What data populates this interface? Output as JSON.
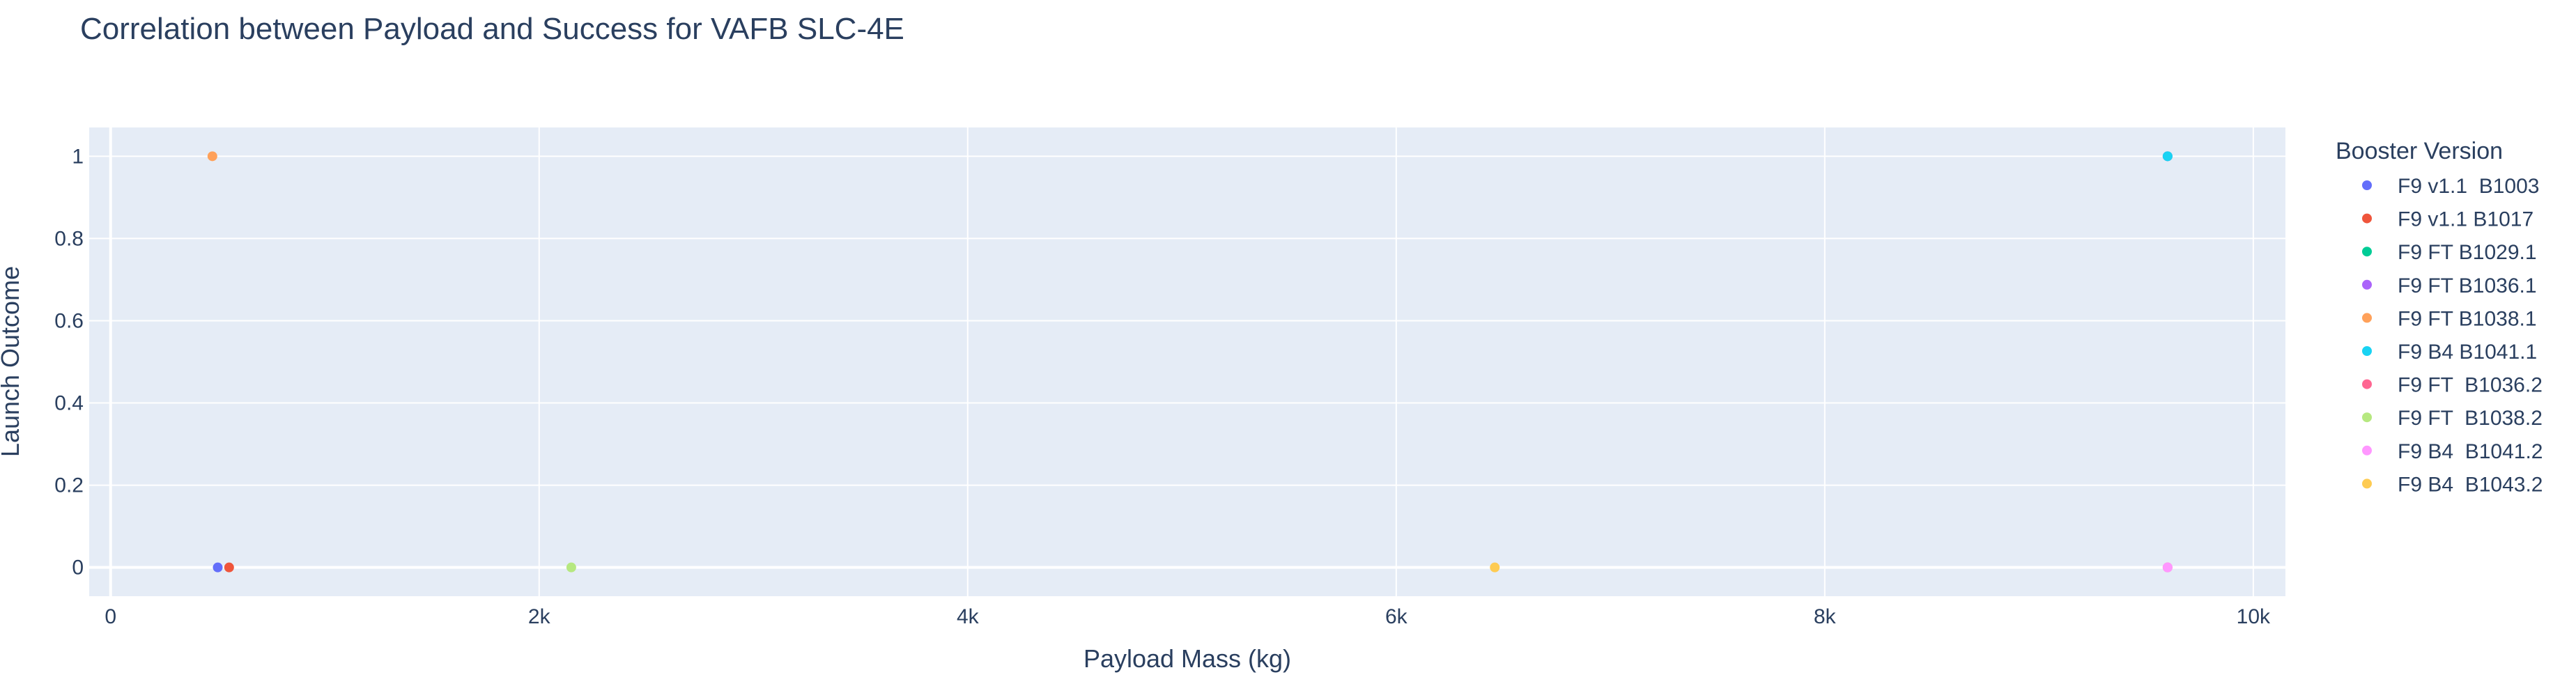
{
  "chart_data": {
    "type": "scatter",
    "title": "Correlation between Payload and Success for VAFB SLC-4E",
    "xlabel": "Payload Mass (kg)",
    "ylabel": "Launch Outcome",
    "xlim": [
      -100,
      10150
    ],
    "ylim": [
      -0.07,
      1.07
    ],
    "x_ticks": [
      0,
      2000,
      4000,
      6000,
      8000,
      10000
    ],
    "x_tick_labels": [
      "0",
      "2k",
      "4k",
      "6k",
      "8k",
      "10k"
    ],
    "y_ticks": [
      0,
      0.2,
      0.4,
      0.6,
      0.8,
      1
    ],
    "y_tick_labels": [
      "0",
      "0.2",
      "0.4",
      "0.6",
      "0.8",
      "1"
    ],
    "grid": true,
    "legend_title": "Booster Version",
    "legend_position": "right",
    "series": [
      {
        "name": "F9 v1.1  B1003",
        "color": "#636efa",
        "points": [
          {
            "x": 500,
            "y": 0
          }
        ]
      },
      {
        "name": "F9 v1.1 B1017",
        "color": "#EF553B",
        "points": [
          {
            "x": 553,
            "y": 0
          }
        ]
      },
      {
        "name": "F9 FT B1029.1",
        "color": "#00cc96",
        "points": [
          {
            "x": 9600,
            "y": 1
          }
        ]
      },
      {
        "name": "F9 FT B1036.1",
        "color": "#ab63fa",
        "points": [
          {
            "x": 9600,
            "y": 1
          }
        ]
      },
      {
        "name": "F9 FT B1038.1",
        "color": "#FFA15A",
        "points": [
          {
            "x": 475,
            "y": 1
          }
        ]
      },
      {
        "name": "F9 B4 B1041.1",
        "color": "#19d3f3",
        "points": [
          {
            "x": 9600,
            "y": 1
          }
        ]
      },
      {
        "name": "F9 FT  B1036.2",
        "color": "#FF6692",
        "points": [
          {
            "x": 9600,
            "y": 0
          }
        ]
      },
      {
        "name": "F9 FT  B1038.2",
        "color": "#B6E880",
        "points": [
          {
            "x": 2150,
            "y": 0
          }
        ]
      },
      {
        "name": "F9 B4  B1041.2",
        "color": "#FF97FF",
        "points": [
          {
            "x": 9600,
            "y": 0
          }
        ]
      },
      {
        "name": "F9 B4  B1043.2",
        "color": "#FECB52",
        "points": [
          {
            "x": 6460,
            "y": 0
          }
        ]
      }
    ]
  }
}
